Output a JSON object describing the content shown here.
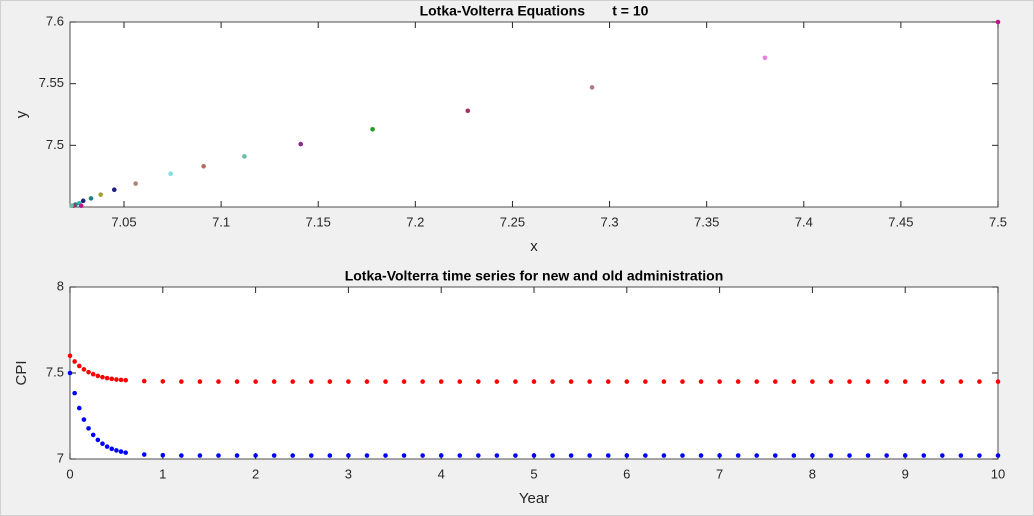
{
  "chart_data": [
    {
      "type": "scatter",
      "title": "Lotka-Volterra Equations       t = 10",
      "x_label": "x",
      "y_label": "y",
      "x": [
        7.5,
        7.38,
        7.291,
        7.227,
        7.178,
        7.141,
        7.112,
        7.091,
        7.074,
        7.056,
        7.045,
        7.038,
        7.033,
        7.029,
        7.027,
        7.028,
        7.025,
        7.024,
        7.023
      ],
      "values": [
        7.6,
        7.571,
        7.547,
        7.528,
        7.513,
        7.501,
        7.491,
        7.483,
        7.477,
        7.469,
        7.464,
        7.46,
        7.457,
        7.455,
        7.453,
        7.451,
        7.452,
        7.451,
        7.451
      ],
      "colors": [
        "#c0148c",
        "#e87de0",
        "#b07a8c",
        "#a03060",
        "#20a020",
        "#8a2a8a",
        "#6abba8",
        "#b07060",
        "#80e0e0",
        "#b08080",
        "#202080",
        "#a0a030",
        "#208080",
        "#202080",
        "#30b0b0",
        "#c0148c",
        "#208080",
        "#a03060",
        "#6abba8"
      ],
      "xlim": [
        7.0222,
        7.5
      ],
      "ylim": [
        7.45,
        7.6
      ],
      "xticks": [
        7.05,
        7.1,
        7.15,
        7.2,
        7.25,
        7.3,
        7.35,
        7.4,
        7.45,
        7.5
      ],
      "yticks": [
        7.5,
        7.55,
        7.6
      ]
    },
    {
      "type": "scatter",
      "title": "Lotka-Volterra time series for new and old administration",
      "x_label": "Year",
      "y_label": "CPI",
      "x": [
        0,
        0.05,
        0.1,
        0.15,
        0.2,
        0.25,
        0.3,
        0.35,
        0.4,
        0.45,
        0.5,
        0.55,
        0.6,
        0.8,
        1,
        1.2,
        1.4,
        1.6,
        1.8,
        2,
        2.2,
        2.4,
        2.6,
        2.8,
        3,
        3.2,
        3.4,
        3.6,
        3.8,
        4,
        4.2,
        4.4,
        4.6,
        4.8,
        5,
        5.2,
        5.4,
        5.6,
        5.8,
        6,
        6.2,
        6.4,
        6.6,
        6.8,
        7,
        7.2,
        7.4,
        7.6,
        7.8,
        8,
        8.2,
        8.4,
        8.6,
        8.8,
        9,
        9.2,
        9.4,
        9.6,
        9.8,
        10
      ],
      "series": [
        {
          "color": "#ff0000",
          "values": [
            7.6,
            7.567,
            7.541,
            7.521,
            7.505,
            7.493,
            7.483,
            7.476,
            7.47,
            7.466,
            7.462,
            7.46,
            7.458,
            7.453,
            7.451,
            7.45,
            7.45,
            7.45,
            7.45,
            7.45,
            7.45,
            7.45,
            7.45,
            7.45,
            7.45,
            7.45,
            7.45,
            7.45,
            7.45,
            7.45,
            7.45,
            7.45,
            7.45,
            7.45,
            7.45,
            7.45,
            7.45,
            7.45,
            7.45,
            7.45,
            7.45,
            7.45,
            7.45,
            7.45,
            7.45,
            7.45,
            7.45,
            7.45,
            7.45,
            7.45,
            7.45,
            7.45,
            7.45,
            7.45,
            7.45,
            7.45,
            7.45,
            7.45,
            7.45,
            7.45
          ]
        },
        {
          "color": "#0000ff",
          "values": [
            7.5,
            7.383,
            7.296,
            7.229,
            7.178,
            7.14,
            7.111,
            7.089,
            7.072,
            7.059,
            7.05,
            7.043,
            7.037,
            7.026,
            7.022,
            7.02,
            7.02,
            7.02,
            7.02,
            7.02,
            7.02,
            7.02,
            7.02,
            7.02,
            7.02,
            7.02,
            7.02,
            7.02,
            7.02,
            7.02,
            7.02,
            7.02,
            7.02,
            7.02,
            7.02,
            7.02,
            7.02,
            7.02,
            7.02,
            7.02,
            7.02,
            7.02,
            7.02,
            7.02,
            7.02,
            7.02,
            7.02,
            7.02,
            7.02,
            7.02,
            7.02,
            7.02,
            7.02,
            7.02,
            7.02,
            7.02,
            7.02,
            7.02,
            7.02,
            7.02
          ]
        }
      ],
      "xlim": [
        0,
        10
      ],
      "ylim": [
        7,
        8
      ],
      "xticks": [
        0,
        1,
        2,
        3,
        4,
        5,
        6,
        7,
        8,
        9,
        10
      ],
      "yticks": [
        7,
        7.5,
        8
      ]
    }
  ]
}
